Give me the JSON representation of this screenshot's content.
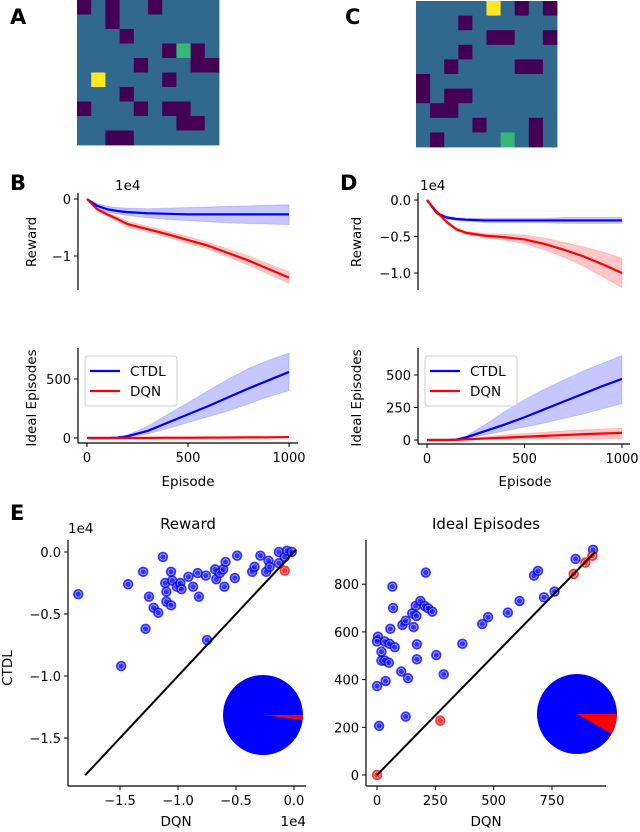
{
  "panel_labels": {
    "a": "A",
    "b": "B",
    "c": "C",
    "d": "D",
    "e": "E"
  },
  "colors": {
    "ctdl": "#0000ff",
    "dqn": "#ff0000",
    "wall": "#440154",
    "free": "#31688e",
    "goal": "#35b779",
    "agent": "#fde725"
  },
  "chart_data": [
    {
      "panel": "A",
      "type": "heatmap",
      "legend_codes": {
        "0": "wall",
        "1": "free",
        "2": "goal",
        "3": "agent"
      },
      "grid": [
        [
          0,
          1,
          0,
          1,
          1,
          0,
          1,
          1,
          1,
          1
        ],
        [
          1,
          1,
          0,
          1,
          1,
          1,
          1,
          1,
          1,
          1
        ],
        [
          1,
          1,
          1,
          0,
          1,
          1,
          1,
          1,
          1,
          1
        ],
        [
          1,
          1,
          1,
          1,
          1,
          1,
          0,
          2,
          0,
          1
        ],
        [
          1,
          1,
          1,
          1,
          0,
          1,
          1,
          1,
          0,
          0
        ],
        [
          1,
          3,
          1,
          1,
          1,
          1,
          0,
          1,
          1,
          1
        ],
        [
          1,
          1,
          1,
          0,
          1,
          1,
          1,
          1,
          1,
          1
        ],
        [
          0,
          1,
          1,
          1,
          0,
          1,
          0,
          0,
          1,
          1
        ],
        [
          1,
          1,
          1,
          1,
          1,
          1,
          1,
          0,
          0,
          1
        ],
        [
          1,
          1,
          0,
          0,
          1,
          1,
          1,
          1,
          1,
          1
        ]
      ]
    },
    {
      "panel": "C",
      "type": "heatmap",
      "legend_codes": {
        "0": "wall",
        "1": "free",
        "2": "goal",
        "3": "agent"
      },
      "grid": [
        [
          1,
          1,
          1,
          1,
          1,
          3,
          1,
          0,
          1,
          0
        ],
        [
          1,
          1,
          1,
          0,
          1,
          1,
          1,
          1,
          1,
          1
        ],
        [
          1,
          1,
          1,
          1,
          1,
          0,
          0,
          1,
          1,
          0
        ],
        [
          1,
          1,
          1,
          0,
          1,
          1,
          1,
          1,
          1,
          1
        ],
        [
          1,
          1,
          0,
          1,
          1,
          1,
          1,
          0,
          0,
          1
        ],
        [
          0,
          1,
          1,
          1,
          1,
          1,
          1,
          1,
          1,
          1
        ],
        [
          0,
          1,
          0,
          0,
          1,
          1,
          1,
          1,
          1,
          1
        ],
        [
          1,
          0,
          0,
          1,
          1,
          1,
          1,
          1,
          1,
          1
        ],
        [
          1,
          1,
          1,
          1,
          0,
          1,
          1,
          1,
          0,
          1
        ],
        [
          1,
          0,
          1,
          1,
          1,
          1,
          2,
          1,
          0,
          1
        ]
      ]
    },
    {
      "panel": "B-top",
      "type": "line",
      "ylabel": "Reward",
      "offset_text": "1e4",
      "yticks": [
        0,
        -1
      ],
      "ytick_labels": [
        "0",
        "−1"
      ],
      "ylim": [
        -1.6,
        0.1
      ],
      "xlim": [
        0,
        1000
      ],
      "x": [
        0,
        50,
        100,
        150,
        200,
        300,
        400,
        500,
        600,
        700,
        800,
        900,
        1000
      ],
      "series": [
        {
          "key": "ctdl",
          "mean": [
            0,
            -0.12,
            -0.18,
            -0.21,
            -0.23,
            -0.25,
            -0.26,
            -0.27,
            -0.27,
            -0.27,
            -0.27,
            -0.27,
            -0.27
          ],
          "upper": [
            0,
            -0.08,
            -0.13,
            -0.15,
            -0.16,
            -0.17,
            -0.16,
            -0.15,
            -0.14,
            -0.13,
            -0.12,
            -0.11,
            -0.1
          ],
          "lower": [
            0,
            -0.16,
            -0.23,
            -0.26,
            -0.29,
            -0.33,
            -0.36,
            -0.38,
            -0.4,
            -0.42,
            -0.43,
            -0.44,
            -0.45
          ]
        },
        {
          "key": "dqn",
          "mean": [
            0,
            -0.18,
            -0.27,
            -0.35,
            -0.44,
            -0.53,
            -0.62,
            -0.72,
            -0.82,
            -0.95,
            -1.08,
            -1.23,
            -1.38
          ],
          "upper": [
            0,
            -0.16,
            -0.24,
            -0.31,
            -0.39,
            -0.48,
            -0.57,
            -0.66,
            -0.76,
            -0.88,
            -1.0,
            -1.14,
            -1.28
          ],
          "lower": [
            0,
            -0.2,
            -0.3,
            -0.39,
            -0.49,
            -0.58,
            -0.67,
            -0.78,
            -0.88,
            -1.02,
            -1.16,
            -1.32,
            -1.48
          ]
        }
      ]
    },
    {
      "panel": "B-bottom",
      "type": "line",
      "ylabel": "Ideal Episodes",
      "xlabel": "Episode",
      "yticks": [
        0,
        500
      ],
      "ytick_labels": [
        "0",
        "500"
      ],
      "xticks": [
        0,
        500,
        1000
      ],
      "xtick_labels": [
        "0",
        "500",
        "1000"
      ],
      "ylim": [
        -40,
        760
      ],
      "xlim": [
        0,
        1000
      ],
      "legend": [
        {
          "key": "ctdl",
          "label": "CTDL"
        },
        {
          "key": "dqn",
          "label": "DQN"
        }
      ],
      "legend_position": "upper-left",
      "x": [
        0,
        50,
        100,
        150,
        200,
        300,
        400,
        500,
        600,
        700,
        800,
        900,
        1000
      ],
      "series": [
        {
          "key": "ctdl",
          "mean": [
            0,
            0,
            0,
            3,
            15,
            60,
            130,
            200,
            270,
            345,
            420,
            490,
            560
          ],
          "upper": [
            0,
            0,
            0,
            5,
            25,
            100,
            200,
            300,
            400,
            500,
            590,
            660,
            720
          ],
          "lower": [
            0,
            0,
            0,
            1,
            8,
            35,
            80,
            130,
            180,
            230,
            290,
            350,
            400
          ]
        },
        {
          "key": "dqn",
          "mean": [
            0,
            0,
            0,
            0,
            1,
            1,
            2,
            2,
            3,
            4,
            5,
            6,
            8
          ],
          "upper": [
            0,
            0,
            0,
            1,
            2,
            3,
            4,
            5,
            6,
            8,
            10,
            12,
            14
          ],
          "lower": [
            0,
            0,
            0,
            0,
            0,
            0,
            0,
            0,
            1,
            1,
            1,
            2,
            3
          ]
        }
      ]
    },
    {
      "panel": "D-top",
      "type": "line",
      "ylabel": "Reward",
      "offset_text": "1e4",
      "yticks": [
        0,
        -0.5,
        -1.0
      ],
      "ytick_labels": [
        "0.0",
        "−0.5",
        "−1.0"
      ],
      "ylim": [
        -1.23,
        0.1
      ],
      "xlim": [
        0,
        1000
      ],
      "x": [
        0,
        50,
        100,
        150,
        200,
        300,
        400,
        500,
        600,
        700,
        800,
        900,
        1000
      ],
      "series": [
        {
          "key": "ctdl",
          "mean": [
            0,
            -0.18,
            -0.24,
            -0.26,
            -0.27,
            -0.28,
            -0.28,
            -0.28,
            -0.28,
            -0.28,
            -0.28,
            -0.28,
            -0.28
          ],
          "upper": [
            0,
            -0.16,
            -0.22,
            -0.24,
            -0.25,
            -0.25,
            -0.25,
            -0.25,
            -0.25,
            -0.24,
            -0.24,
            -0.24,
            -0.24
          ],
          "lower": [
            0,
            -0.2,
            -0.26,
            -0.28,
            -0.29,
            -0.31,
            -0.31,
            -0.31,
            -0.31,
            -0.32,
            -0.32,
            -0.32,
            -0.32
          ]
        },
        {
          "key": "dqn",
          "mean": [
            0,
            -0.16,
            -0.3,
            -0.4,
            -0.45,
            -0.49,
            -0.51,
            -0.54,
            -0.6,
            -0.68,
            -0.77,
            -0.88,
            -1.0
          ],
          "upper": [
            0,
            -0.15,
            -0.28,
            -0.38,
            -0.43,
            -0.46,
            -0.47,
            -0.48,
            -0.52,
            -0.58,
            -0.64,
            -0.71,
            -0.8
          ],
          "lower": [
            0,
            -0.17,
            -0.32,
            -0.42,
            -0.47,
            -0.52,
            -0.55,
            -0.6,
            -0.68,
            -0.78,
            -0.9,
            -1.05,
            -1.2
          ]
        }
      ]
    },
    {
      "panel": "D-bottom",
      "type": "line",
      "ylabel": "Ideal Episodes",
      "xlabel": "Episode",
      "yticks": [
        0,
        250,
        500
      ],
      "ytick_labels": [
        "0",
        "250",
        "500"
      ],
      "xticks": [
        0,
        500,
        1000
      ],
      "xtick_labels": [
        "0",
        "500",
        "1000"
      ],
      "ylim": [
        -30,
        708
      ],
      "xlim": [
        0,
        1000
      ],
      "legend": [
        {
          "key": "ctdl",
          "label": "CTDL"
        },
        {
          "key": "dqn",
          "label": "DQN"
        }
      ],
      "legend_position": "upper-left",
      "x": [
        0,
        50,
        100,
        150,
        200,
        300,
        400,
        500,
        600,
        700,
        800,
        900,
        1000
      ],
      "series": [
        {
          "key": "ctdl",
          "mean": [
            0,
            0,
            0,
            3,
            20,
            70,
            120,
            175,
            235,
            295,
            355,
            415,
            470
          ],
          "upper": [
            0,
            0,
            0,
            6,
            30,
            120,
            220,
            310,
            390,
            460,
            530,
            590,
            650
          ],
          "lower": [
            0,
            0,
            0,
            1,
            10,
            40,
            70,
            100,
            130,
            165,
            200,
            240,
            280
          ]
        },
        {
          "key": "dqn",
          "mean": [
            0,
            0,
            0,
            1,
            5,
            12,
            18,
            25,
            32,
            38,
            44,
            50,
            55
          ],
          "upper": [
            0,
            0,
            0,
            2,
            8,
            25,
            40,
            50,
            60,
            70,
            78,
            85,
            90
          ],
          "lower": [
            0,
            0,
            0,
            0,
            2,
            4,
            6,
            8,
            10,
            10,
            10,
            10,
            10
          ]
        }
      ]
    },
    {
      "panel": "E-left",
      "type": "scatter",
      "title": "Reward",
      "xlabel": "DQN",
      "ylabel": "CTDL",
      "x_offset_text": "1e4",
      "y_offset_text": "1e4",
      "xticks": [
        -1.5,
        -1.0,
        -0.5,
        0.0
      ],
      "xtick_labels": [
        "−1.5",
        "−1.0",
        "−0.5",
        "0.0"
      ],
      "yticks": [
        0.0,
        -0.5,
        -1.0,
        -1.5
      ],
      "ytick_labels": [
        "0.0",
        "−0.5",
        "−1.0",
        "−1.5"
      ],
      "xlim": [
        -1.95,
        0.1
      ],
      "ylim": [
        -1.89,
        0.1
      ],
      "diagonal": [
        -1.8,
        0.02
      ],
      "points_ctdl_better": [
        [
          -1.86,
          -0.34
        ],
        [
          -1.49,
          -0.92
        ],
        [
          -1.43,
          -0.26
        ],
        [
          -1.3,
          -0.16
        ],
        [
          -1.25,
          -0.36
        ],
        [
          -1.28,
          -0.62
        ],
        [
          -1.21,
          -0.45
        ],
        [
          -1.17,
          -0.49
        ],
        [
          -1.13,
          -0.04
        ],
        [
          -1.11,
          -0.25
        ],
        [
          -1.1,
          -0.32
        ],
        [
          -1.1,
          -0.4
        ],
        [
          -1.06,
          -0.43
        ],
        [
          -1.06,
          -0.16
        ],
        [
          -1.05,
          -0.23
        ],
        [
          -1.01,
          -0.28
        ],
        [
          -0.98,
          -0.25
        ],
        [
          -0.97,
          -0.3
        ],
        [
          -0.91,
          -0.2
        ],
        [
          -0.87,
          -0.28
        ],
        [
          -0.83,
          -0.17
        ],
        [
          -0.82,
          -0.36
        ],
        [
          -0.75,
          -0.71
        ],
        [
          -0.76,
          -0.19
        ],
        [
          -0.68,
          -0.14
        ],
        [
          -0.67,
          -0.22
        ],
        [
          -0.64,
          -0.17
        ],
        [
          -0.61,
          -0.14
        ],
        [
          -0.6,
          -0.28
        ],
        [
          -0.59,
          -0.08
        ],
        [
          -0.51,
          -0.21
        ],
        [
          -0.49,
          -0.03
        ],
        [
          -0.36,
          -0.16
        ],
        [
          -0.34,
          -0.12
        ],
        [
          -0.29,
          -0.03
        ],
        [
          -0.24,
          -0.16
        ],
        [
          -0.22,
          -0.07
        ],
        [
          -0.21,
          -0.12
        ],
        [
          -0.13,
          0.0
        ],
        [
          -0.13,
          -0.09
        ],
        [
          -0.08,
          -0.04
        ],
        [
          -0.06,
          0.01
        ],
        [
          -0.02,
          0.0
        ]
      ],
      "points_dqn_better": [
        [
          -0.08,
          -0.15
        ]
      ],
      "pie_fraction_dqn": 0.02
    },
    {
      "panel": "E-right",
      "type": "scatter",
      "title": "Ideal Episodes",
      "xlabel": "DQN",
      "xticks": [
        0,
        250,
        500,
        750
      ],
      "xtick_labels": [
        "0",
        "250",
        "500",
        "750"
      ],
      "yticks": [
        0,
        200,
        400,
        600,
        800
      ],
      "ytick_labels": [
        "0",
        "200",
        "400",
        "600",
        "800"
      ],
      "xlim": [
        -47,
        980
      ],
      "ylim": [
        -46,
        985
      ],
      "diagonal": [
        0,
        935
      ],
      "points_ctdl_better": [
        [
          4,
          580
        ],
        [
          0,
          560
        ],
        [
          19,
          517
        ],
        [
          33,
          560
        ],
        [
          54,
          550
        ],
        [
          19,
          480
        ],
        [
          33,
          480
        ],
        [
          51,
          471
        ],
        [
          76,
          536
        ],
        [
          0,
          373
        ],
        [
          37,
          394
        ],
        [
          9,
          206
        ],
        [
          66,
          790
        ],
        [
          69,
          700
        ],
        [
          57,
          613
        ],
        [
          104,
          434
        ],
        [
          109,
          629
        ],
        [
          123,
          647
        ],
        [
          133,
          406
        ],
        [
          123,
          245
        ],
        [
          157,
          620
        ],
        [
          151,
          678
        ],
        [
          169,
          667
        ],
        [
          166,
          709
        ],
        [
          171,
          548
        ],
        [
          171,
          485
        ],
        [
          186,
          730
        ],
        [
          204,
          709
        ],
        [
          209,
          849
        ],
        [
          219,
          699
        ],
        [
          237,
          685
        ],
        [
          254,
          503
        ],
        [
          286,
          422
        ],
        [
          366,
          550
        ],
        [
          451,
          633
        ],
        [
          476,
          662
        ],
        [
          561,
          681
        ],
        [
          611,
          730
        ],
        [
          673,
          836
        ],
        [
          690,
          856
        ],
        [
          716,
          745
        ],
        [
          761,
          769
        ],
        [
          851,
          906
        ],
        [
          926,
          944
        ]
      ],
      "points_dqn_better": [
        [
          0,
          0
        ],
        [
          271,
          228
        ],
        [
          843,
          843
        ],
        [
          893,
          891
        ],
        [
          923,
          919
        ]
      ],
      "pie_fraction_dqn": 0.083
    }
  ]
}
